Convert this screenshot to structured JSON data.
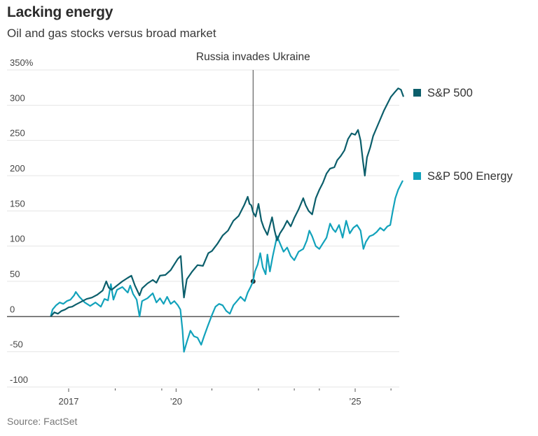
{
  "header": {
    "title": "Lacking energy",
    "subtitle": "Oil and gas stocks versus broad market"
  },
  "footer": {
    "source": "Source: FactSet"
  },
  "colors": {
    "sp500": "#0b5e6b",
    "energy": "#12a2bb",
    "grid": "#e4e4e4",
    "zero_line": "#555555",
    "annotation_line": "#444444"
  },
  "chart_data": {
    "type": "line",
    "title": "Lacking energy",
    "subtitle": "Oil and gas stocks versus broad market",
    "xlabel": "",
    "ylabel": "",
    "y_unit": "%",
    "ylim": [
      -100,
      350
    ],
    "yticks": [
      350,
      300,
      250,
      200,
      150,
      100,
      50,
      0,
      -50,
      -100
    ],
    "ytick_labels": [
      "350%",
      "300",
      "250",
      "200",
      "150",
      "100",
      "50",
      "0",
      "-50",
      "-100"
    ],
    "xlim": [
      2015.6,
      2026.6
    ],
    "xticks_minor": [
      2017,
      2018.3,
      2019.6,
      2020,
      2021,
      2022.3,
      2023.3,
      2024,
      2025,
      2026
    ],
    "xtick_labels": [
      {
        "x": 2017,
        "label": "2017"
      },
      {
        "x": 2020,
        "label": "’20"
      },
      {
        "x": 2025,
        "label": "’25"
      }
    ],
    "grid": true,
    "legend": "right",
    "annotations": [
      {
        "type": "vline",
        "x": 2022.15,
        "label": "Russia invades Ukraine",
        "marker_y": 50
      }
    ],
    "series": [
      {
        "name": "S&P 500",
        "key": "sp500",
        "points": [
          [
            2016.5,
            0
          ],
          [
            2016.6,
            6
          ],
          [
            2016.7,
            4
          ],
          [
            2016.8,
            8
          ],
          [
            2016.9,
            10
          ],
          [
            2017.0,
            13
          ],
          [
            2017.1,
            14
          ],
          [
            2017.2,
            17
          ],
          [
            2017.35,
            21
          ],
          [
            2017.5,
            25
          ],
          [
            2017.65,
            27
          ],
          [
            2017.8,
            31
          ],
          [
            2017.95,
            37
          ],
          [
            2018.05,
            50
          ],
          [
            2018.12,
            41
          ],
          [
            2018.2,
            38
          ],
          [
            2018.35,
            44
          ],
          [
            2018.5,
            50
          ],
          [
            2018.65,
            55
          ],
          [
            2018.75,
            58
          ],
          [
            2018.85,
            44
          ],
          [
            2018.98,
            30
          ],
          [
            2019.05,
            40
          ],
          [
            2019.2,
            47
          ],
          [
            2019.35,
            52
          ],
          [
            2019.45,
            48
          ],
          [
            2019.55,
            58
          ],
          [
            2019.7,
            59
          ],
          [
            2019.85,
            66
          ],
          [
            2019.95,
            74
          ],
          [
            2020.05,
            82
          ],
          [
            2020.13,
            86
          ],
          [
            2020.18,
            50
          ],
          [
            2020.22,
            27
          ],
          [
            2020.3,
            53
          ],
          [
            2020.45,
            64
          ],
          [
            2020.6,
            73
          ],
          [
            2020.75,
            72
          ],
          [
            2020.9,
            90
          ],
          [
            2021.0,
            93
          ],
          [
            2021.15,
            103
          ],
          [
            2021.3,
            115
          ],
          [
            2021.45,
            122
          ],
          [
            2021.6,
            136
          ],
          [
            2021.75,
            143
          ],
          [
            2021.9,
            158
          ],
          [
            2022.0,
            170
          ],
          [
            2022.05,
            160
          ],
          [
            2022.1,
            158
          ],
          [
            2022.15,
            148
          ],
          [
            2022.22,
            142
          ],
          [
            2022.3,
            160
          ],
          [
            2022.38,
            136
          ],
          [
            2022.45,
            126
          ],
          [
            2022.55,
            116
          ],
          [
            2022.68,
            141
          ],
          [
            2022.75,
            122
          ],
          [
            2022.82,
            108
          ],
          [
            2022.9,
            118
          ],
          [
            2023.0,
            126
          ],
          [
            2023.1,
            136
          ],
          [
            2023.2,
            128
          ],
          [
            2023.3,
            140
          ],
          [
            2023.42,
            152
          ],
          [
            2023.55,
            168
          ],
          [
            2023.62,
            158
          ],
          [
            2023.7,
            150
          ],
          [
            2023.8,
            145
          ],
          [
            2023.9,
            168
          ],
          [
            2024.0,
            180
          ],
          [
            2024.1,
            190
          ],
          [
            2024.2,
            203
          ],
          [
            2024.3,
            210
          ],
          [
            2024.42,
            212
          ],
          [
            2024.5,
            222
          ],
          [
            2024.6,
            228
          ],
          [
            2024.7,
            236
          ],
          [
            2024.8,
            252
          ],
          [
            2024.9,
            260
          ],
          [
            2025.0,
            258
          ],
          [
            2025.08,
            265
          ],
          [
            2025.15,
            250
          ],
          [
            2025.22,
            220
          ],
          [
            2025.27,
            200
          ],
          [
            2025.33,
            226
          ],
          [
            2025.42,
            240
          ],
          [
            2025.5,
            256
          ],
          [
            2025.6,
            268
          ],
          [
            2025.7,
            280
          ],
          [
            2025.8,
            292
          ],
          [
            2025.9,
            302
          ],
          [
            2026.0,
            312
          ],
          [
            2026.1,
            318
          ],
          [
            2026.2,
            324
          ],
          [
            2026.28,
            322
          ],
          [
            2026.35,
            312
          ]
        ]
      },
      {
        "name": "S&P 500 Energy",
        "key": "energy",
        "points": [
          [
            2016.5,
            0
          ],
          [
            2016.55,
            10
          ],
          [
            2016.65,
            16
          ],
          [
            2016.75,
            20
          ],
          [
            2016.85,
            18
          ],
          [
            2016.95,
            22
          ],
          [
            2017.05,
            24
          ],
          [
            2017.15,
            30
          ],
          [
            2017.2,
            35
          ],
          [
            2017.3,
            28
          ],
          [
            2017.45,
            20
          ],
          [
            2017.6,
            15
          ],
          [
            2017.75,
            20
          ],
          [
            2017.9,
            14
          ],
          [
            2018.0,
            25
          ],
          [
            2018.1,
            23
          ],
          [
            2018.18,
            46
          ],
          [
            2018.25,
            24
          ],
          [
            2018.35,
            38
          ],
          [
            2018.5,
            42
          ],
          [
            2018.65,
            34
          ],
          [
            2018.72,
            44
          ],
          [
            2018.8,
            32
          ],
          [
            2018.9,
            24
          ],
          [
            2018.98,
            0
          ],
          [
            2019.05,
            22
          ],
          [
            2019.2,
            26
          ],
          [
            2019.35,
            33
          ],
          [
            2019.45,
            20
          ],
          [
            2019.55,
            26
          ],
          [
            2019.65,
            18
          ],
          [
            2019.75,
            28
          ],
          [
            2019.85,
            18
          ],
          [
            2019.95,
            22
          ],
          [
            2020.05,
            16
          ],
          [
            2020.12,
            10
          ],
          [
            2020.18,
            -20
          ],
          [
            2020.22,
            -50
          ],
          [
            2020.3,
            -36
          ],
          [
            2020.4,
            -20
          ],
          [
            2020.5,
            -28
          ],
          [
            2020.6,
            -30
          ],
          [
            2020.7,
            -40
          ],
          [
            2020.78,
            -28
          ],
          [
            2020.88,
            -14
          ],
          [
            2021.0,
            2
          ],
          [
            2021.1,
            14
          ],
          [
            2021.2,
            18
          ],
          [
            2021.3,
            16
          ],
          [
            2021.4,
            8
          ],
          [
            2021.5,
            4
          ],
          [
            2021.6,
            16
          ],
          [
            2021.7,
            22
          ],
          [
            2021.8,
            28
          ],
          [
            2021.92,
            22
          ],
          [
            2022.0,
            34
          ],
          [
            2022.08,
            42
          ],
          [
            2022.15,
            50
          ],
          [
            2022.2,
            64
          ],
          [
            2022.28,
            74
          ],
          [
            2022.35,
            90
          ],
          [
            2022.42,
            70
          ],
          [
            2022.5,
            60
          ],
          [
            2022.55,
            88
          ],
          [
            2022.62,
            64
          ],
          [
            2022.7,
            86
          ],
          [
            2022.82,
            114
          ],
          [
            2022.9,
            104
          ],
          [
            2023.0,
            92
          ],
          [
            2023.1,
            98
          ],
          [
            2023.2,
            86
          ],
          [
            2023.3,
            80
          ],
          [
            2023.42,
            92
          ],
          [
            2023.55,
            96
          ],
          [
            2023.65,
            108
          ],
          [
            2023.72,
            122
          ],
          [
            2023.8,
            114
          ],
          [
            2023.9,
            100
          ],
          [
            2024.0,
            96
          ],
          [
            2024.1,
            104
          ],
          [
            2024.2,
            112
          ],
          [
            2024.3,
            132
          ],
          [
            2024.38,
            124
          ],
          [
            2024.45,
            120
          ],
          [
            2024.55,
            130
          ],
          [
            2024.65,
            112
          ],
          [
            2024.75,
            136
          ],
          [
            2024.85,
            118
          ],
          [
            2024.95,
            126
          ],
          [
            2025.05,
            130
          ],
          [
            2025.15,
            122
          ],
          [
            2025.23,
            96
          ],
          [
            2025.3,
            106
          ],
          [
            2025.4,
            114
          ],
          [
            2025.5,
            116
          ],
          [
            2025.6,
            120
          ],
          [
            2025.7,
            126
          ],
          [
            2025.8,
            122
          ],
          [
            2025.9,
            128
          ],
          [
            2025.98,
            130
          ],
          [
            2026.05,
            150
          ],
          [
            2026.12,
            168
          ],
          [
            2026.2,
            180
          ],
          [
            2026.28,
            188
          ],
          [
            2026.33,
            193
          ]
        ]
      }
    ]
  }
}
